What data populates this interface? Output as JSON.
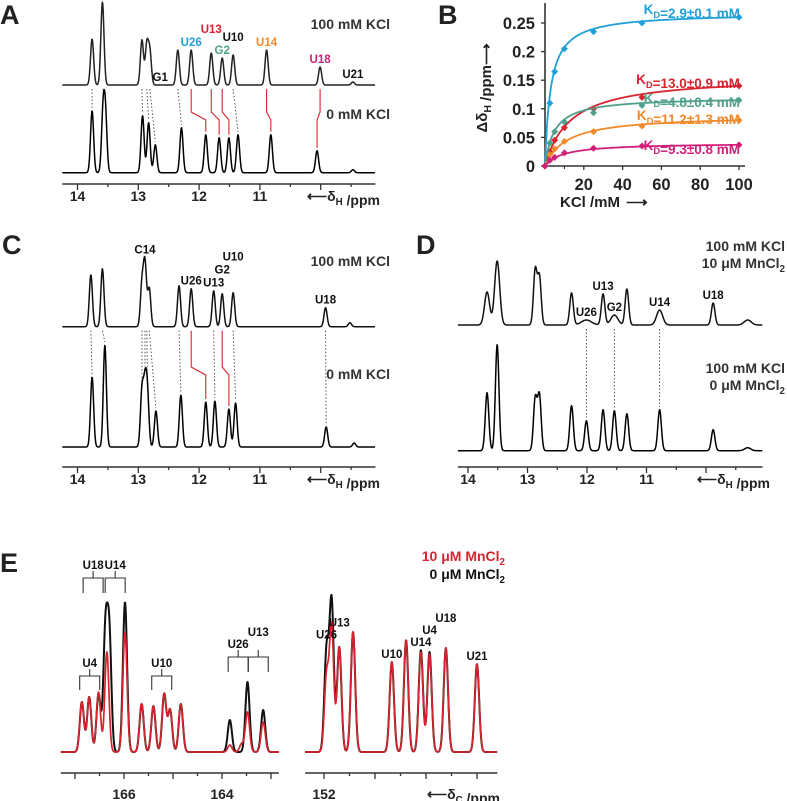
{
  "panel_labels": {
    "A": "A",
    "B": "B",
    "C": "C",
    "D": "D",
    "E": "E"
  },
  "chart_data": [
    {
      "panel": "A",
      "type": "line",
      "x_label": {
        "arrow": "⟵",
        "symbol": "δ",
        "sub": "H",
        "unit": " /ppm"
      },
      "xlim": [
        14.25,
        9.1
      ],
      "x_ticks": [
        14,
        13,
        12,
        11
      ],
      "traces": [
        {
          "condition_lines": [
            {
              "text": "100 mM KCl"
            }
          ],
          "color": "#222222",
          "peaks": [
            [
              13.76,
              46
            ],
            [
              13.59,
              83
            ],
            [
              12.94,
              45
            ],
            [
              12.86,
              40
            ],
            [
              12.81,
              33
            ],
            [
              12.35,
              35
            ],
            [
              12.13,
              35
            ],
            [
              11.8,
              32
            ],
            [
              11.62,
              27
            ],
            [
              11.44,
              30
            ],
            [
              10.89,
              35
            ],
            [
              10.01,
              18
            ],
            [
              9.47,
              3
            ]
          ]
        },
        {
          "condition_lines": [
            {
              "text": "0 mM KCl"
            }
          ],
          "color": "#000000",
          "peaks": [
            [
              13.76,
              62
            ],
            [
              13.58,
              58
            ],
            [
              13.54,
              55
            ],
            [
              12.93,
              57
            ],
            [
              12.83,
              50
            ],
            [
              12.72,
              28
            ],
            [
              12.29,
              45
            ],
            [
              11.89,
              38
            ],
            [
              11.67,
              35
            ],
            [
              11.51,
              35
            ],
            [
              11.36,
              38
            ],
            [
              10.82,
              38
            ],
            [
              10.06,
              22
            ],
            [
              9.47,
              3
            ]
          ]
        }
      ],
      "assignments": [
        {
          "label": "G1",
          "ppm": 12.64,
          "color": "#111111"
        },
        {
          "label": "U26",
          "ppm": 12.13,
          "color": "#1fa0d8"
        },
        {
          "label": "U13",
          "ppm": 11.8,
          "color": "#d6242f"
        },
        {
          "label": "G2",
          "ppm": 11.62,
          "color": "#4fa08a"
        },
        {
          "label": "U10",
          "ppm": 11.44,
          "color": "#111111"
        },
        {
          "label": "U14",
          "ppm": 10.89,
          "color": "#f08a2a"
        },
        {
          "label": "U18",
          "ppm": 10.01,
          "color": "#d0207a"
        },
        {
          "label": "U21",
          "ppm": 9.47,
          "color": "#111111"
        }
      ],
      "connectors": [
        {
          "from": 13.76,
          "to": 13.76,
          "style": "dotted"
        },
        {
          "from": 13.59,
          "to": 13.55,
          "style": "dotted"
        },
        {
          "from": 12.94,
          "to": 12.93,
          "style": "dotted"
        },
        {
          "from": 12.86,
          "to": 12.83,
          "style": "dotted"
        },
        {
          "from": 12.81,
          "to": 12.72,
          "style": "dotted"
        },
        {
          "from": 12.35,
          "to": 12.29,
          "style": "dotted"
        },
        {
          "from": 11.44,
          "to": 11.36,
          "style": "dotted"
        },
        {
          "from": 12.13,
          "to": 11.89,
          "style": "shift"
        },
        {
          "from": 11.8,
          "to": 11.67,
          "style": "shift"
        },
        {
          "from": 11.62,
          "to": 11.51,
          "style": "shift"
        },
        {
          "from": 10.89,
          "to": 10.82,
          "style": "shift"
        },
        {
          "from": 10.01,
          "to": 10.06,
          "style": "shift"
        }
      ],
      "shift_color": "#d6242f"
    },
    {
      "panel": "B",
      "type": "scatter",
      "x_label": {
        "text": "KCl /mM",
        "arrow": "⟶"
      },
      "y_label": {
        "symbol": "Δδ",
        "sub": "H",
        "unit": " /ppm",
        "arrow": "⟶"
      },
      "xlim": [
        0,
        100
      ],
      "ylim": [
        0,
        0.28
      ],
      "x_ticks": [
        20,
        40,
        60,
        80,
        100
      ],
      "y_ticks": [
        0,
        0.05,
        0.1,
        0.15,
        0.2,
        0.25
      ],
      "y_tick_labels": [
        "0",
        "0.05",
        "0.1",
        "0.15",
        "0.2",
        "0.25"
      ],
      "kd_symbol": "K",
      "kd_sub": "D",
      "x": [
        0,
        2.5,
        5,
        10,
        25,
        50,
        100
      ],
      "series": [
        {
          "kd": 2.9,
          "kd_text": "=2.9±0.1 mM",
          "color": "#1fa0d8",
          "values": [
            0,
            0.11,
            0.165,
            0.205,
            0.235,
            0.25,
            0.26
          ]
        },
        {
          "kd": 13.0,
          "kd_text": "=13.0±0.9 mM",
          "color": "#d6242f",
          "values": [
            0,
            0.025,
            0.045,
            0.067,
            0.1,
            0.12,
            0.14
          ]
        },
        {
          "kd": 4.8,
          "kd_text": "=4.8±0.4 mM",
          "color": "#4fa08a",
          "values": [
            0,
            0.04,
            0.06,
            0.077,
            0.093,
            0.106,
            0.115
          ]
        },
        {
          "kd": 11.2,
          "kd_text": "=11.2±1.3 mM",
          "color": "#f08a2a",
          "values": [
            0,
            0.02,
            0.03,
            0.043,
            0.06,
            0.07,
            0.08
          ]
        },
        {
          "kd": 9.3,
          "kd_text": "=9.3±0.8 mM",
          "color": "#d0207a",
          "values": [
            0,
            0.01,
            0.015,
            0.023,
            0.031,
            0.035,
            0.037
          ]
        }
      ]
    },
    {
      "panel": "C",
      "type": "line",
      "x_label": {
        "arrow": "⟵",
        "symbol": "δ",
        "sub": "H",
        "unit": " /ppm"
      },
      "xlim": [
        14.25,
        9.1
      ],
      "x_ticks": [
        14,
        13,
        12,
        11
      ],
      "traces": [
        {
          "condition_lines": [
            {
              "text": "100 mM KCl"
            }
          ],
          "color": "#111111",
          "peaks": [
            [
              13.78,
              52
            ],
            [
              13.59,
              58
            ],
            [
              12.94,
              42
            ],
            [
              12.89,
              62
            ],
            [
              12.82,
              38
            ],
            [
              12.33,
              41
            ],
            [
              12.13,
              38
            ],
            [
              11.76,
              36
            ],
            [
              11.62,
              33
            ],
            [
              11.44,
              34
            ],
            [
              9.92,
              19
            ],
            [
              9.52,
              4
            ]
          ]
        },
        {
          "condition_lines": [
            {
              "text": "0 mM KCl"
            }
          ],
          "color": "#000000",
          "peaks": [
            [
              13.76,
              70
            ],
            [
              13.55,
              102
            ],
            [
              12.94,
              55
            ],
            [
              12.89,
              55
            ],
            [
              12.85,
              50
            ],
            [
              12.71,
              36
            ],
            [
              12.3,
              52
            ],
            [
              11.89,
              45
            ],
            [
              11.74,
              46
            ],
            [
              11.51,
              38
            ],
            [
              11.4,
              44
            ],
            [
              9.91,
              20
            ],
            [
              9.45,
              4
            ]
          ]
        }
      ],
      "assignments": [
        {
          "label": "C14",
          "ppm": 12.89,
          "color": "#111111"
        },
        {
          "label": "U26",
          "ppm": 12.13,
          "color": "#111111"
        },
        {
          "label": "U13",
          "ppm": 11.76,
          "color": "#111111"
        },
        {
          "label": "G2",
          "ppm": 11.62,
          "color": "#111111"
        },
        {
          "label": "U10",
          "ppm": 11.44,
          "color": "#111111"
        },
        {
          "label": "U18",
          "ppm": 9.92,
          "color": "#111111"
        }
      ],
      "connectors": [
        {
          "from": 13.78,
          "to": 13.76,
          "style": "dotted"
        },
        {
          "from": 13.59,
          "to": 13.55,
          "style": "dotted"
        },
        {
          "from": 12.94,
          "to": 12.94,
          "style": "dotted"
        },
        {
          "from": 12.89,
          "to": 12.89,
          "style": "dotted"
        },
        {
          "from": 12.86,
          "to": 12.85,
          "style": "dotted"
        },
        {
          "from": 12.82,
          "to": 12.71,
          "style": "dotted"
        },
        {
          "from": 12.33,
          "to": 12.3,
          "style": "dotted"
        },
        {
          "from": 11.76,
          "to": 11.74,
          "style": "dotted"
        },
        {
          "from": 11.44,
          "to": 11.4,
          "style": "dotted"
        },
        {
          "from": 9.92,
          "to": 9.91,
          "style": "dotted"
        },
        {
          "from": 12.13,
          "to": 11.89,
          "style": "shift"
        },
        {
          "from": 11.62,
          "to": 11.51,
          "style": "shift"
        }
      ],
      "shift_color": "#d6242f"
    },
    {
      "panel": "D",
      "type": "line",
      "x_label": {
        "arrow": "⟵",
        "symbol": "δ",
        "sub": "H",
        "unit": " /ppm"
      },
      "xlim": [
        14.17,
        9.05
      ],
      "x_ticks": [
        14,
        13,
        12,
        11
      ],
      "traces": [
        {
          "condition_lines": [
            {
              "text": "100 mM KCl"
            },
            {
              "text": "10 μM MnCl",
              "sub": "2"
            }
          ],
          "color": "#111111",
          "peaks": [
            [
              13.68,
              33,
              0.05
            ],
            [
              13.51,
              64,
              0.05
            ],
            [
              12.87,
              55
            ],
            [
              12.8,
              48
            ],
            [
              12.26,
              32
            ],
            [
              12.01,
              5,
              0.1
            ],
            [
              11.73,
              31
            ],
            [
              11.54,
              10,
              0.07
            ],
            [
              11.33,
              36
            ],
            [
              10.78,
              15,
              0.06
            ],
            [
              9.88,
              22
            ],
            [
              9.3,
              5,
              0.07
            ]
          ]
        },
        {
          "condition_lines": [
            {
              "text": "100 mM KCl"
            },
            {
              "text": "0 μM MnCl",
              "sub": "2"
            }
          ],
          "color": "#000000",
          "peaks": [
            [
              13.68,
              58
            ],
            [
              13.51,
              106
            ],
            [
              12.87,
              52
            ],
            [
              12.8,
              55
            ],
            [
              12.26,
              45
            ],
            [
              12.01,
              30
            ],
            [
              11.73,
              41
            ],
            [
              11.54,
              40
            ],
            [
              11.33,
              37
            ],
            [
              10.78,
              41
            ],
            [
              9.88,
              21
            ],
            [
              9.3,
              3,
              0.06
            ]
          ]
        }
      ],
      "assignments": [
        {
          "label": "U26",
          "ppm": 12.01,
          "color": "#111111"
        },
        {
          "label": "U13",
          "ppm": 11.73,
          "color": "#111111"
        },
        {
          "label": "G2",
          "ppm": 11.54,
          "color": "#111111"
        },
        {
          "label": "U14",
          "ppm": 10.78,
          "color": "#111111"
        },
        {
          "label": "U18",
          "ppm": 9.88,
          "color": "#111111"
        }
      ],
      "connectors": [
        {
          "from": 12.01,
          "to": 12.01,
          "style": "dotted"
        },
        {
          "from": 11.54,
          "to": 11.54,
          "style": "dotted"
        },
        {
          "from": 10.78,
          "to": 10.78,
          "style": "dotted"
        }
      ]
    },
    {
      "panel": "E",
      "type": "line",
      "x_label": {
        "arrow": "⟵",
        "symbol": "δ",
        "sub": "C",
        "unit": " /ppm"
      },
      "legend": [
        {
          "text": "10 μM MnCl",
          "sub": "2",
          "color": "#d6242f"
        },
        {
          "text": "0 μM MnCl",
          "sub": "2",
          "color": "#111111"
        }
      ],
      "segments": [
        {
          "xlim": [
            167.29,
            162.84
          ],
          "x_ticks": [
            166,
            164
          ],
          "peaks_0uM": [
            [
              166.86,
              50
            ],
            [
              166.71,
              55
            ],
            [
              166.52,
              58
            ],
            [
              166.38,
              118
            ],
            [
              166.3,
              115
            ],
            [
              165.98,
              150
            ],
            [
              165.64,
              48
            ],
            [
              165.4,
              46
            ],
            [
              165.18,
              58
            ],
            [
              165.06,
              42
            ],
            [
              164.84,
              48
            ],
            [
              163.84,
              32
            ],
            [
              163.48,
              70
            ],
            [
              163.16,
              42
            ]
          ],
          "peaks_10uM": [
            [
              166.86,
              50
            ],
            [
              166.71,
              55
            ],
            [
              166.52,
              60
            ],
            [
              166.35,
              100
            ],
            [
              165.98,
              120
            ],
            [
              165.64,
              48
            ],
            [
              165.4,
              46
            ],
            [
              165.18,
              58
            ],
            [
              165.06,
              42
            ],
            [
              164.84,
              48
            ],
            [
              163.84,
              7
            ],
            [
              163.6,
              8
            ],
            [
              163.48,
              40
            ],
            [
              163.16,
              30
            ]
          ],
          "brackets": [
            {
              "label": "U18",
              "ppm": 166.63
            },
            {
              "label": "U14",
              "ppm": 166.18
            },
            {
              "label": "U4",
              "ppm": 166.7
            },
            {
              "label": "U10",
              "ppm": 165.23
            },
            {
              "label": "U26",
              "ppm": 163.67
            },
            {
              "label": "U13",
              "ppm": 163.26
            }
          ]
        },
        {
          "xlim": [
            152.37,
            148.6
          ],
          "x_ticks": [
            152
          ],
          "peaks_0uM": [
            [
              151.95,
              100
            ],
            [
              151.85,
              150
            ],
            [
              151.7,
              105
            ],
            [
              151.43,
              120
            ],
            [
              150.67,
              90
            ],
            [
              150.39,
              112
            ],
            [
              150.1,
              102
            ],
            [
              149.93,
              100
            ],
            [
              149.61,
              104
            ],
            [
              149.0,
              88
            ]
          ],
          "peaks_10uM": [
            [
              151.95,
              75
            ],
            [
              151.85,
              125
            ],
            [
              151.7,
              105
            ],
            [
              151.43,
              120
            ],
            [
              150.67,
              90
            ],
            [
              150.39,
              112
            ],
            [
              150.1,
              100
            ],
            [
              149.93,
              98
            ],
            [
              149.61,
              104
            ],
            [
              149.0,
              88
            ]
          ],
          "assignments": [
            {
              "label": "U26",
              "ppm": 151.95
            },
            {
              "label": "U13",
              "ppm": 151.7
            },
            {
              "label": "U10",
              "ppm": 150.67
            },
            {
              "label": "U14",
              "ppm": 150.1
            },
            {
              "label": "U4",
              "ppm": 149.93
            },
            {
              "label": "U18",
              "ppm": 149.61
            },
            {
              "label": "U21",
              "ppm": 149.0
            }
          ]
        }
      ]
    }
  ]
}
